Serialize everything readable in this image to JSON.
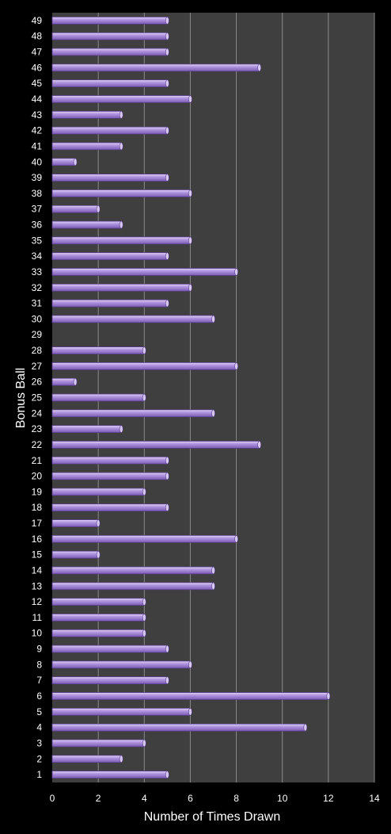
{
  "chart_data": {
    "type": "bar",
    "orientation": "horizontal",
    "title": "",
    "xlabel": "Number of Times Drawn",
    "ylabel": "Bonus Ball",
    "xlim": [
      0,
      14
    ],
    "x_ticks": [
      0,
      2,
      4,
      6,
      8,
      10,
      12,
      14
    ],
    "grid": true,
    "legend": "none",
    "colors": {
      "background": "#000000",
      "plot_area": "#3f3f3f",
      "gridline": "#8a8a8a",
      "bar_fill": "#9f7fd4",
      "bar_highlight": "#d8c8f4",
      "bar_edge": "#5a3f8a",
      "text": "#ffffff"
    },
    "categories": [
      "1",
      "2",
      "3",
      "4",
      "5",
      "6",
      "7",
      "8",
      "9",
      "10",
      "11",
      "12",
      "13",
      "14",
      "15",
      "16",
      "17",
      "18",
      "19",
      "20",
      "21",
      "22",
      "23",
      "24",
      "25",
      "26",
      "27",
      "28",
      "29",
      "30",
      "31",
      "32",
      "33",
      "34",
      "35",
      "36",
      "37",
      "38",
      "39",
      "40",
      "41",
      "42",
      "43",
      "44",
      "45",
      "46",
      "47",
      "48",
      "49"
    ],
    "values": [
      5,
      3,
      4,
      11,
      6,
      12,
      5,
      6,
      5,
      4,
      4,
      4,
      7,
      7,
      2,
      8,
      2,
      5,
      4,
      5,
      5,
      9,
      3,
      7,
      4,
      1,
      8,
      4,
      0,
      7,
      5,
      6,
      8,
      5,
      6,
      3,
      2,
      6,
      5,
      1,
      3,
      5,
      3,
      6,
      5,
      9,
      5,
      5,
      5
    ]
  }
}
